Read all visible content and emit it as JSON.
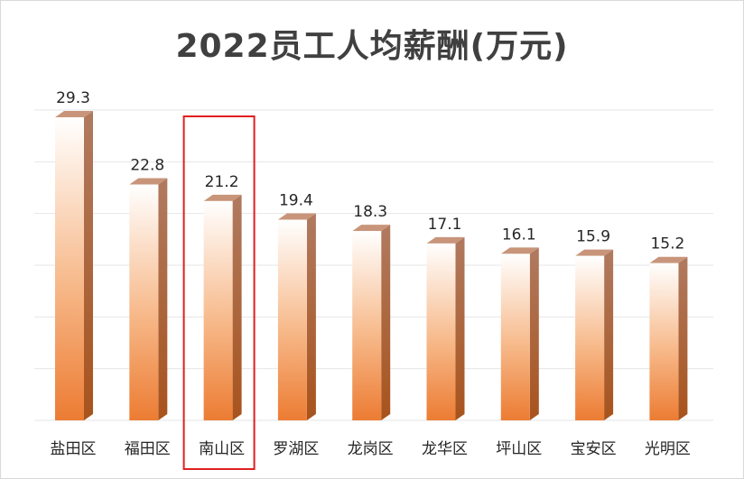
{
  "chart_data": {
    "type": "bar",
    "title": "2022员工人均薪酬(万元)",
    "categories": [
      "盐田区",
      "福田区",
      "南山区",
      "罗湖区",
      "龙岗区",
      "龙华区",
      "坪山区",
      "宝安区",
      "光明区"
    ],
    "values": [
      29.3,
      22.8,
      21.2,
      19.4,
      18.3,
      17.1,
      16.1,
      15.9,
      15.2
    ],
    "value_labels": [
      "29.3",
      "22.8",
      "21.2",
      "19.4",
      "18.3",
      "17.1",
      "16.1",
      "15.9",
      "15.2"
    ],
    "highlighted_category": "南山区",
    "highlight_color": "#e02020",
    "bar_color": "#f0914a",
    "gridline_color": "#e6e6e6",
    "ylim": [
      0,
      30
    ],
    "grid": true,
    "legend": "none",
    "xlabel": "",
    "ylabel": ""
  }
}
